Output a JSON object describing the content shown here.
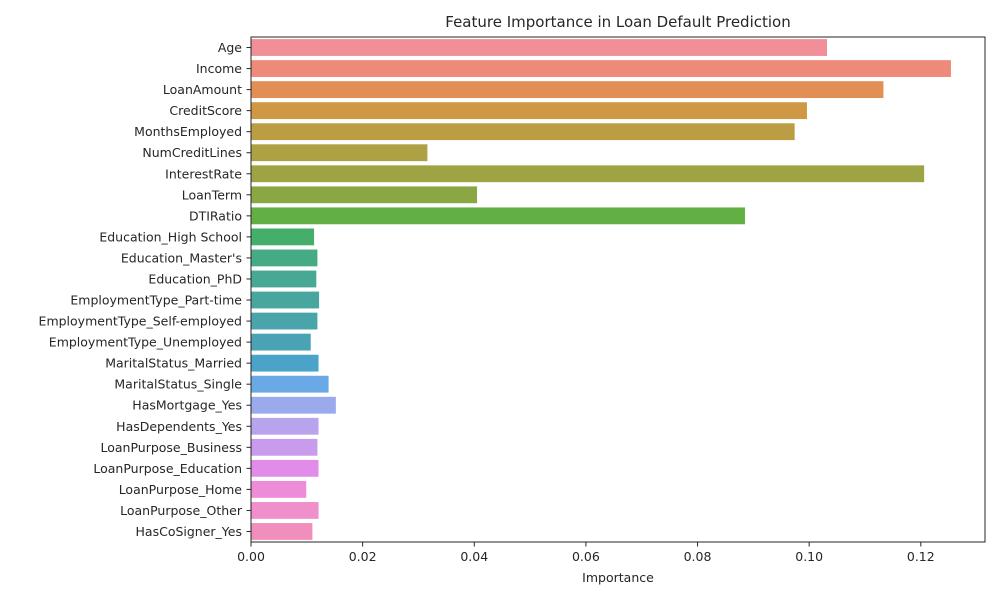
{
  "chart_data": {
    "type": "bar",
    "orientation": "horizontal",
    "title": "Feature Importance in Loan Default Prediction",
    "xlabel": "Importance",
    "ylabel": "",
    "xlim": [
      0,
      0.1315
    ],
    "xticks": [
      0.0,
      0.02,
      0.04,
      0.06,
      0.08,
      0.1,
      0.12
    ],
    "xtick_labels": [
      "0.00",
      "0.02",
      "0.04",
      "0.06",
      "0.08",
      "0.10",
      "0.12"
    ],
    "grid": false,
    "legend": "none",
    "categories": [
      "Age",
      "Income",
      "LoanAmount",
      "CreditScore",
      "MonthsEmployed",
      "NumCreditLines",
      "InterestRate",
      "LoanTerm",
      "DTIRatio",
      "Education_High School",
      "Education_Master's",
      "Education_PhD",
      "EmploymentType_Part-time",
      "EmploymentType_Self-employed",
      "EmploymentType_Unemployed",
      "MaritalStatus_Married",
      "MaritalStatus_Single",
      "HasMortgage_Yes",
      "HasDependents_Yes",
      "LoanPurpose_Business",
      "LoanPurpose_Education",
      "LoanPurpose_Home",
      "LoanPurpose_Other",
      "HasCoSigner_Yes"
    ],
    "values": [
      0.1032,
      0.1254,
      0.1133,
      0.0996,
      0.0974,
      0.0316,
      0.1206,
      0.0405,
      0.0885,
      0.0113,
      0.0119,
      0.0117,
      0.0122,
      0.0119,
      0.0107,
      0.0121,
      0.0139,
      0.0152,
      0.0121,
      0.0119,
      0.0121,
      0.0099,
      0.0121,
      0.011
    ],
    "colors": [
      "#f08f97",
      "#ed8a7a",
      "#e18f54",
      "#cf9844",
      "#bd9d44",
      "#aea144",
      "#9ea444",
      "#8aa744",
      "#62b044",
      "#45ae6b",
      "#46aa84",
      "#47a893",
      "#48a69f",
      "#49a5a9",
      "#4aa3b5",
      "#4ba3c9",
      "#6aa9e6",
      "#9ba9ed",
      "#b7a4ed",
      "#c99bed",
      "#e18ce9",
      "#ed8cd9",
      "#ef8fcb",
      "#f08fbb"
    ]
  }
}
